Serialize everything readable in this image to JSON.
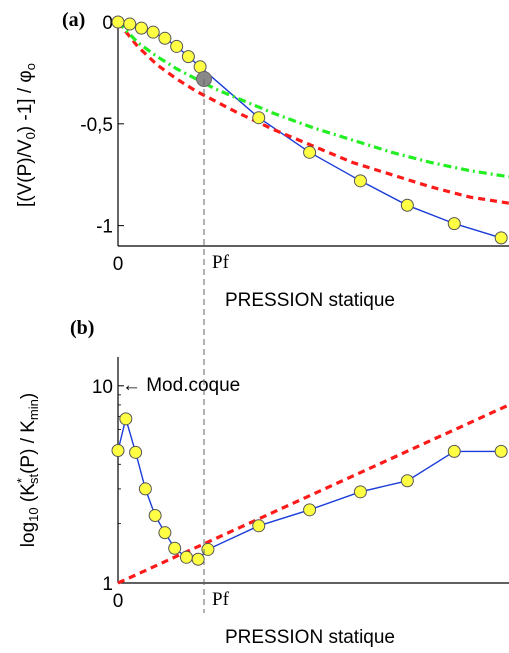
{
  "colors": {
    "measured": "#1a3cd8",
    "marker_fill": "#ffff44",
    "marker_edge": "#555555",
    "model_red": "#ff1a1a",
    "model_green": "#22ee22",
    "highlight_point": "#888888",
    "pf_line": "#666666"
  },
  "chart_data": [
    {
      "type": "line",
      "panel_label": "(a)",
      "title": "",
      "xlabel": "PRESSION statique",
      "ylabel": "[(V(P)/V0) -1] / φo",
      "ylabel_parts": {
        "a": "[(V(P)/V",
        "sub0": "0",
        "b": ") -1] / φ",
        "subo": "o"
      },
      "xlim": [
        0,
        10
      ],
      "ylim": [
        -1.1,
        0
      ],
      "x_ticks": [
        0
      ],
      "x_tick_labels": [
        "0"
      ],
      "y_ticks": [
        0,
        -0.5,
        -1
      ],
      "y_tick_labels": [
        "0",
        "-0,5",
        "-1"
      ],
      "pf_x": 2.2,
      "pf_label": "Pf",
      "highlight_point": [
        2.2,
        -0.28
      ],
      "series": [
        {
          "style": "line-markers",
          "x": [
            0,
            0.3,
            0.6,
            0.9,
            1.2,
            1.5,
            1.8,
            2.1,
            3.6,
            4.9,
            6.2,
            7.4,
            8.6,
            9.8
          ],
          "y": [
            0,
            -0.01,
            -0.03,
            -0.05,
            -0.08,
            -0.12,
            -0.17,
            -0.22,
            -0.47,
            -0.64,
            -0.78,
            -0.9,
            -0.99,
            -1.06
          ]
        },
        {
          "style": "dashed",
          "x": [
            0,
            0.5,
            1,
            1.5,
            2,
            2.5,
            3,
            4,
            5,
            6,
            7,
            8,
            9,
            10
          ],
          "y": [
            0,
            -0.12,
            -0.21,
            -0.28,
            -0.34,
            -0.39,
            -0.44,
            -0.53,
            -0.61,
            -0.69,
            -0.75,
            -0.81,
            -0.86,
            -0.89
          ]
        },
        {
          "style": "dashdot",
          "x": [
            0,
            0.5,
            1,
            1.5,
            2,
            2.5,
            3,
            4,
            5,
            6,
            7,
            8,
            9,
            10
          ],
          "y": [
            0,
            -0.1,
            -0.17,
            -0.23,
            -0.28,
            -0.33,
            -0.37,
            -0.45,
            -0.52,
            -0.58,
            -0.64,
            -0.69,
            -0.73,
            -0.76
          ]
        }
      ]
    },
    {
      "type": "line",
      "panel_label": "(b)",
      "title": "",
      "xlabel": "PRESSION statique",
      "ylabel": "log10 (K*st(P) / Kmin)",
      "ylabel_parts": {
        "a": "log",
        "sub10": "10",
        "b": " (K",
        "sup": "*",
        "sub": "st",
        "c": "(P) / K",
        "submin": "min",
        "d": ")"
      },
      "yscale": "log",
      "xlim": [
        0,
        10
      ],
      "ylim": [
        1,
        14
      ],
      "x_ticks": [
        0
      ],
      "x_tick_labels": [
        "0"
      ],
      "y_ticks": [
        1,
        10
      ],
      "y_tick_labels": [
        "1",
        "10"
      ],
      "pf_x": 2.2,
      "pf_label": "Pf",
      "annotation": {
        "text": "← Mod.coque",
        "x": 0.05,
        "y": 10
      },
      "series": [
        {
          "style": "line-markers",
          "x": [
            0,
            0.2,
            0.45,
            0.7,
            0.95,
            1.2,
            1.45,
            1.75,
            2.05,
            2.3,
            3.6,
            4.9,
            6.2,
            7.4,
            8.6,
            9.8
          ],
          "y": [
            4.7,
            6.8,
            4.6,
            3.0,
            2.2,
            1.8,
            1.5,
            1.35,
            1.32,
            1.48,
            1.95,
            2.35,
            2.9,
            3.3,
            4.65,
            4.65
          ]
        },
        {
          "style": "dashed",
          "x": [
            0,
            10
          ],
          "y": [
            1,
            8
          ]
        }
      ]
    }
  ]
}
